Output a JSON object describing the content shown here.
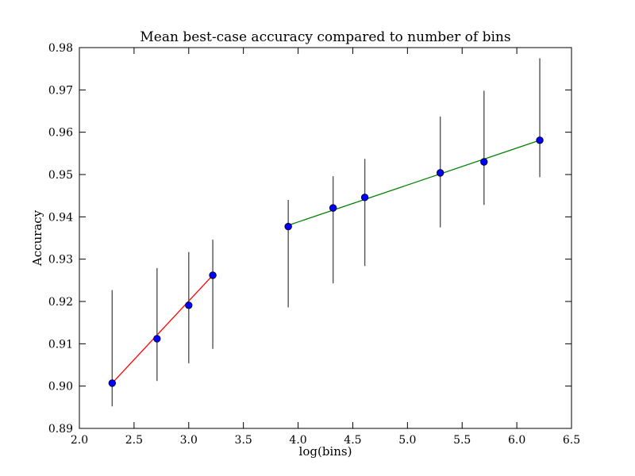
{
  "chart_data": {
    "type": "scatter",
    "title": "Mean best-case accuracy compared to number of bins",
    "xlabel": "log(bins)",
    "ylabel": "Accuracy",
    "xlim": [
      2.0,
      6.5
    ],
    "ylim": [
      0.89,
      0.98
    ],
    "xticks": [
      "2.0",
      "2.5",
      "3.0",
      "3.5",
      "4.0",
      "4.5",
      "5.0",
      "5.5",
      "6.0",
      "6.5"
    ],
    "yticks": [
      "0.89",
      "0.90",
      "0.91",
      "0.92",
      "0.93",
      "0.94",
      "0.95",
      "0.96",
      "0.97",
      "0.98"
    ],
    "grid": false,
    "legend": false,
    "points": {
      "color": "#0000ff",
      "data": [
        {
          "x": 2.3,
          "y": 0.9007,
          "err_low": 0.8952,
          "err_high": 0.9227
        },
        {
          "x": 2.71,
          "y": 0.9112,
          "err_low": 0.9012,
          "err_high": 0.9279
        },
        {
          "x": 3.0,
          "y": 0.9191,
          "err_low": 0.9054,
          "err_high": 0.9317
        },
        {
          "x": 3.22,
          "y": 0.9262,
          "err_low": 0.9088,
          "err_high": 0.9346
        },
        {
          "x": 3.91,
          "y": 0.9377,
          "err_low": 0.9186,
          "err_high": 0.944
        },
        {
          "x": 4.32,
          "y": 0.9421,
          "err_low": 0.9243,
          "err_high": 0.9496
        },
        {
          "x": 4.61,
          "y": 0.9446,
          "err_low": 0.9284,
          "err_high": 0.9537
        },
        {
          "x": 5.3,
          "y": 0.9504,
          "err_low": 0.9375,
          "err_high": 0.9637
        },
        {
          "x": 5.7,
          "y": 0.953,
          "err_low": 0.9428,
          "err_high": 0.9698
        },
        {
          "x": 6.21,
          "y": 0.9581,
          "err_low": 0.9494,
          "err_high": 0.9775
        }
      ]
    },
    "fit_lines": [
      {
        "color": "#ff0000",
        "x": [
          2.3,
          3.22
        ],
        "y": [
          0.9007,
          0.9262
        ]
      },
      {
        "color": "#008000",
        "x": [
          3.91,
          6.21
        ],
        "y": [
          0.938,
          0.9581
        ]
      }
    ],
    "errorbar_color": "#555555"
  }
}
